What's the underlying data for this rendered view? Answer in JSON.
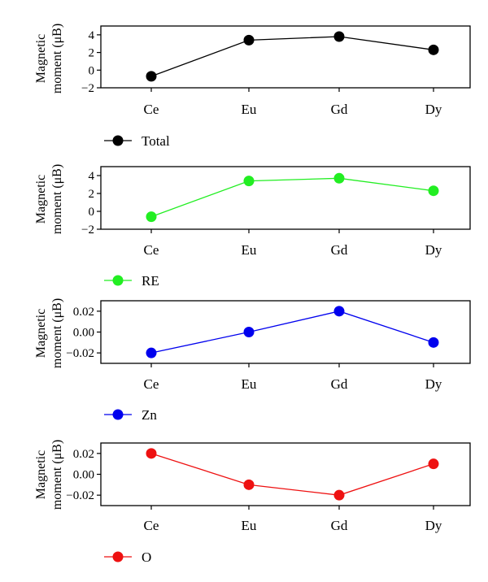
{
  "chart_data": [
    {
      "type": "line",
      "categories": [
        "Ce",
        "Eu",
        "Gd",
        "Dy"
      ],
      "series": [
        {
          "name": "Total",
          "values": [
            -0.7,
            3.4,
            3.8,
            2.3
          ],
          "color": "#000000"
        }
      ],
      "ylabel": [
        "Magnetic",
        "moment (μB)"
      ],
      "ylim": [
        -2,
        5
      ],
      "yticks": [
        -2,
        0,
        2,
        4
      ],
      "ytick_labels": [
        "−2",
        "0",
        "2",
        "4"
      ],
      "grid": false,
      "legend_position": "bottom-left"
    },
    {
      "type": "line",
      "categories": [
        "Ce",
        "Eu",
        "Gd",
        "Dy"
      ],
      "series": [
        {
          "name": "RE",
          "values": [
            -0.6,
            3.4,
            3.7,
            2.3
          ],
          "color": "#22ee22"
        }
      ],
      "ylabel": [
        "Magnetic",
        "moment (μB)"
      ],
      "ylim": [
        -2,
        5
      ],
      "yticks": [
        -2,
        0,
        2,
        4
      ],
      "ytick_labels": [
        "−2",
        "0",
        "2",
        "4"
      ],
      "grid": false,
      "legend_position": "bottom-left"
    },
    {
      "type": "line",
      "categories": [
        "Ce",
        "Eu",
        "Gd",
        "Dy"
      ],
      "series": [
        {
          "name": "Zn",
          "values": [
            -0.02,
            0.0,
            0.02,
            -0.01
          ],
          "color": "#0000ee"
        }
      ],
      "ylabel": [
        "Magnetic",
        "moment (μB)"
      ],
      "ylim": [
        -0.03,
        0.03
      ],
      "yticks": [
        -0.02,
        0.0,
        0.02
      ],
      "ytick_labels": [
        "−0.02",
        "0.00",
        "0.02"
      ],
      "grid": false,
      "legend_position": "bottom-left"
    },
    {
      "type": "line",
      "categories": [
        "Ce",
        "Eu",
        "Gd",
        "Dy"
      ],
      "series": [
        {
          "name": "O",
          "values": [
            0.02,
            -0.01,
            -0.02,
            0.01
          ],
          "color": "#ee1111"
        }
      ],
      "ylabel": [
        "Magnetic",
        "moment (μB)"
      ],
      "ylim": [
        -0.03,
        0.03
      ],
      "yticks": [
        -0.02,
        0.0,
        0.02
      ],
      "ytick_labels": [
        "−0.02",
        "0.00",
        "0.02"
      ],
      "grid": false,
      "legend_position": "bottom-left"
    }
  ]
}
